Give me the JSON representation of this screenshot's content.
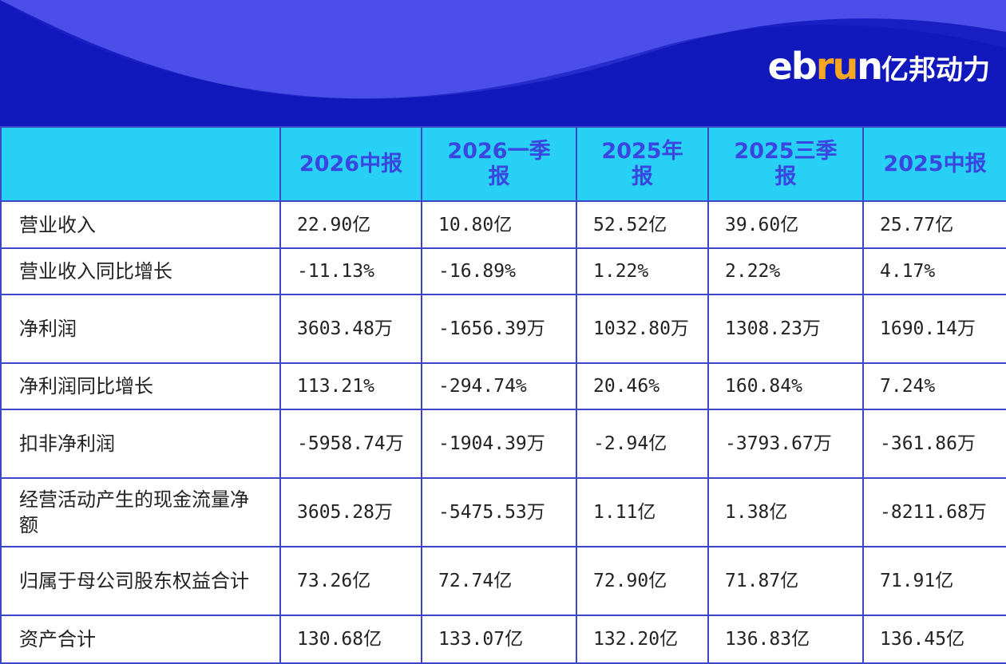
{
  "header": {
    "logo": [
      "eb",
      "ru",
      "n",
      "亿邦动力"
    ]
  },
  "table": {
    "columns": [
      "2026中报",
      "2026一季报",
      "2025年报",
      "2025三季报",
      "2025中报"
    ],
    "rows": [
      [
        "营业收入",
        "22.90亿",
        "10.80亿",
        "52.52亿",
        "39.60亿",
        "25.77亿"
      ],
      [
        "营业收入同比增长",
        "-11.13%",
        "-16.89%",
        "1.22%",
        "2.22%",
        "4.17%"
      ],
      [
        "净利润",
        "3603.48万",
        "-1656.39万",
        "1032.80万",
        "1308.23万",
        "1690.14万"
      ],
      [
        "净利润同比增长",
        "113.21%",
        "-294.74%",
        "20.46%",
        "160.84%",
        "7.24%"
      ],
      [
        "扣非净利润",
        "-5958.74万",
        "-1904.39万",
        "-2.94亿",
        "-3793.67万",
        "-361.86万"
      ],
      [
        "经营活动产生的现金流量净额",
        "3605.28万",
        "-5475.53万",
        "1.11亿",
        "1.38亿",
        "-8211.68万"
      ],
      [
        "归属于母公司股东权益合计",
        "73.26亿",
        "72.74亿",
        "72.90亿",
        "71.87亿",
        "71.91亿"
      ],
      [
        "资产合计",
        "130.68亿",
        "133.07亿",
        "132.20亿",
        "136.83亿",
        "136.45亿"
      ]
    ]
  }
}
